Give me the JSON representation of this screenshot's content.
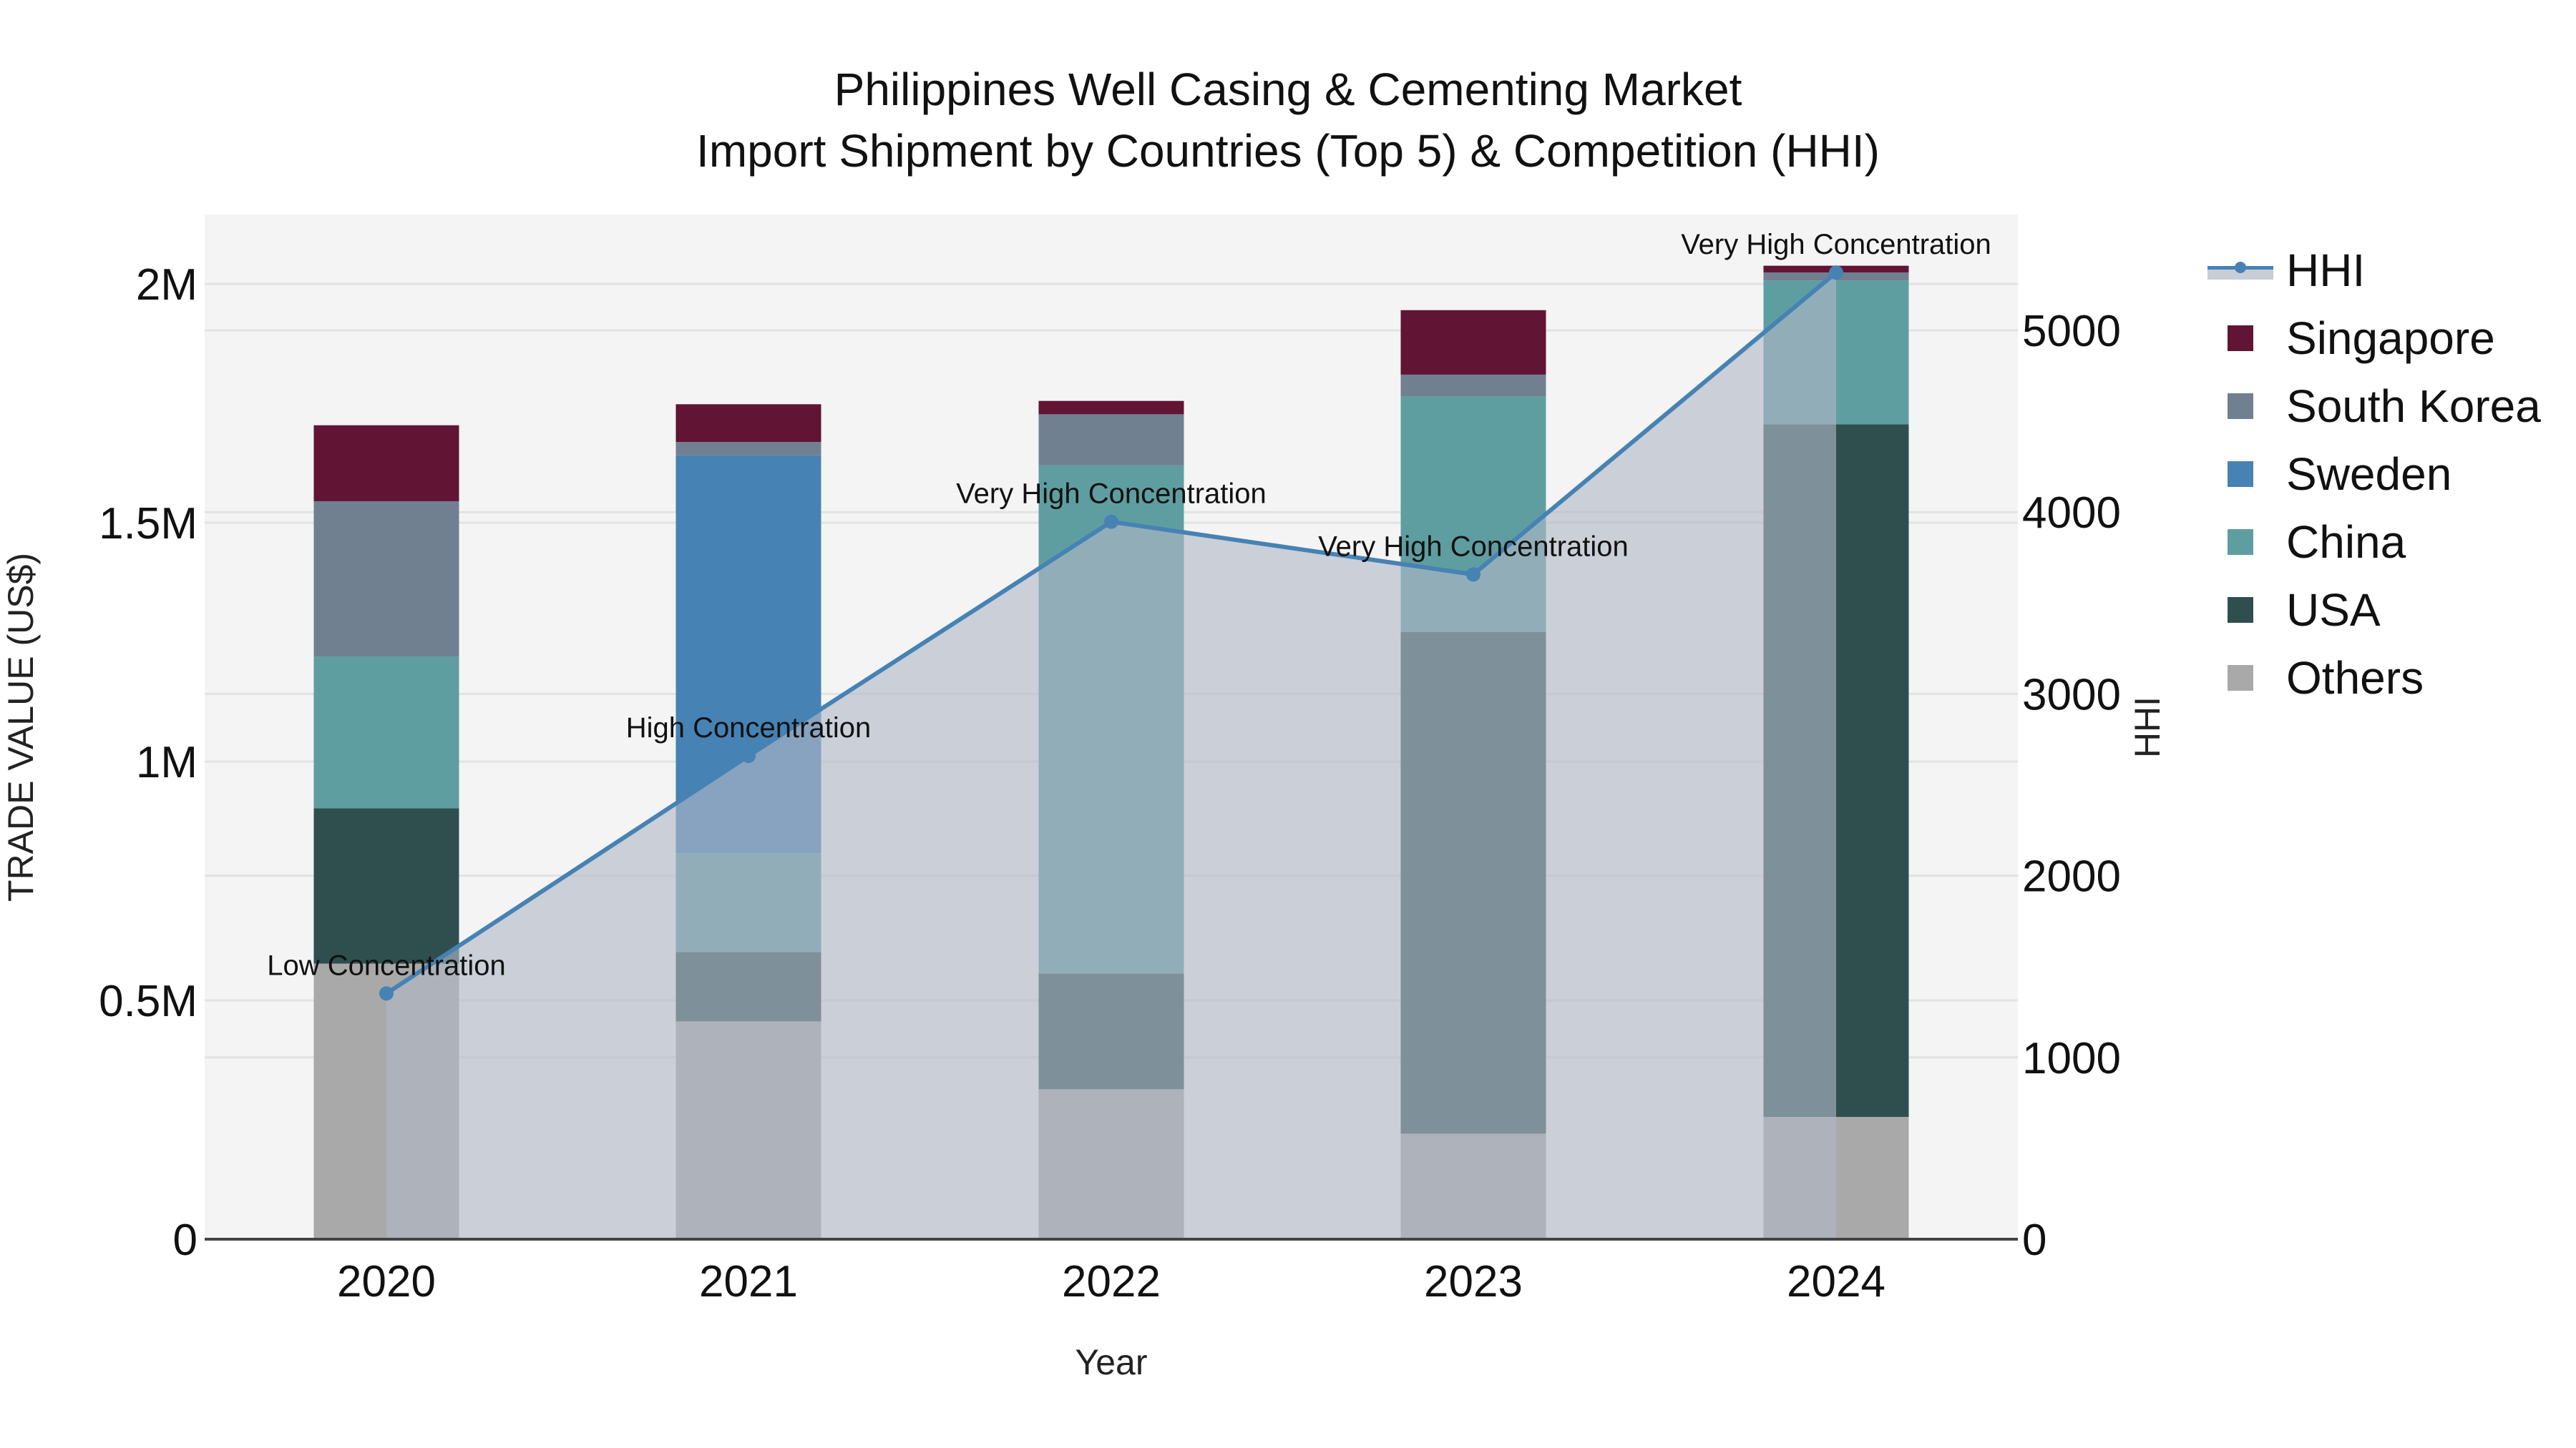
{
  "title": {
    "line1": "Philippines Well Casing & Cementing Market",
    "line2": "Import Shipment by Countries (Top 5) & Competition (HHI)"
  },
  "axes": {
    "x_title": "Year",
    "y_left_title": "TRADE VALUE (US$)",
    "y_right_title": "HHI",
    "y_left_ticks": [
      "0",
      "0.5M",
      "1M",
      "1.5M",
      "2M"
    ],
    "y_right_ticks": [
      "0",
      "1000",
      "2000",
      "3000",
      "4000",
      "5000"
    ]
  },
  "legend": [
    {
      "name": "HHI",
      "type": "line"
    },
    {
      "name": "Singapore",
      "color": "#611434"
    },
    {
      "name": "South Korea",
      "color": "#708090"
    },
    {
      "name": "Sweden",
      "color": "#4682b4"
    },
    {
      "name": "China",
      "color": "#5f9ea0"
    },
    {
      "name": "USA",
      "color": "#2f4f4f"
    },
    {
      "name": "Others",
      "color": "#a9a9a9"
    }
  ],
  "colors": {
    "plot_bg": "#f4f4f4",
    "grid": "#e2e2e2",
    "hhi_line": "#4682b4",
    "hhi_fill": "rgba(176,184,198,0.62)",
    "axis_line": "#444444"
  },
  "chart_data": {
    "type": "bar",
    "stacked": true,
    "title": "Philippines Well Casing & Cementing Market — Import Shipment by Countries (Top 5) & Competition (HHI)",
    "xlabel": "Year",
    "ylabel": "TRADE VALUE (US$)",
    "y2label": "HHI",
    "categories": [
      "2020",
      "2021",
      "2022",
      "2023",
      "2024"
    ],
    "ylim": [
      0,
      2150000
    ],
    "y2lim": [
      0,
      5640
    ],
    "grid": true,
    "legend_position": "right",
    "series": [
      {
        "name": "Others",
        "color": "#a9a9a9",
        "values": [
          577000,
          456000,
          314000,
          221000,
          256000
        ]
      },
      {
        "name": "USA",
        "color": "#2f4f4f",
        "values": [
          325000,
          145000,
          242000,
          1050000,
          1450000
        ]
      },
      {
        "name": "China",
        "color": "#5f9ea0",
        "values": [
          318000,
          207000,
          1064000,
          494000,
          301000
        ]
      },
      {
        "name": "Sweden",
        "color": "#4682b4",
        "values": [
          0,
          833000,
          0,
          0,
          0
        ]
      },
      {
        "name": "South Korea",
        "color": "#708090",
        "values": [
          325000,
          28000,
          107000,
          45000,
          17000
        ]
      },
      {
        "name": "Singapore",
        "color": "#611434",
        "values": [
          159000,
          79000,
          28000,
          135000,
          14000
        ]
      }
    ],
    "hhi": {
      "name": "HHI",
      "type": "line+area",
      "axis": "right",
      "values": [
        1352,
        2659,
        3947,
        3657,
        5318
      ],
      "annotations": [
        "Low Concentration",
        "High Concentration",
        "Very High Concentration",
        "Very High Concentration",
        "Very High Concentration"
      ]
    }
  }
}
